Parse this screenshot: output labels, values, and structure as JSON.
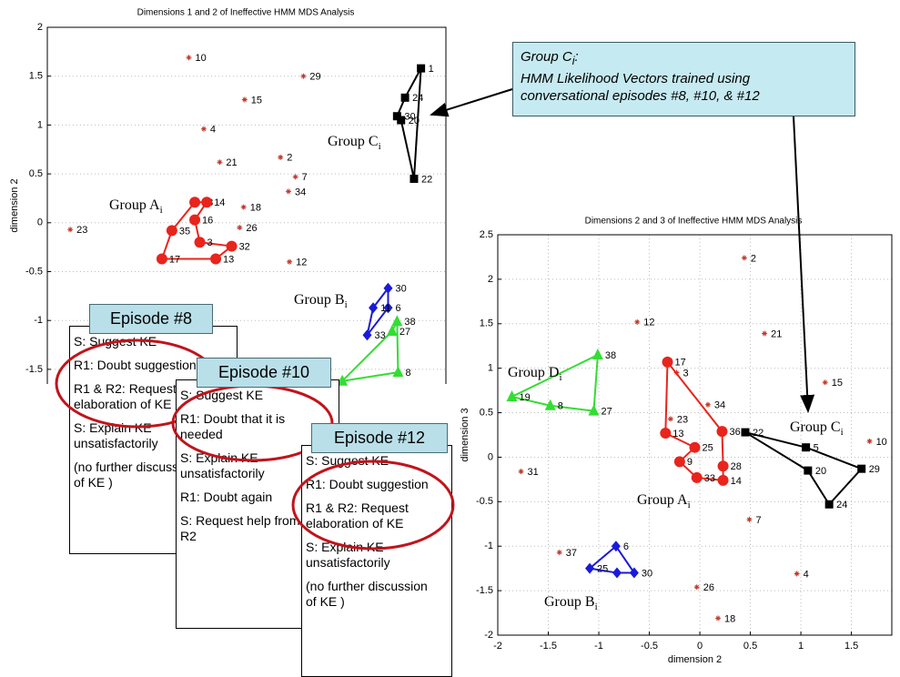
{
  "chart_data": [
    {
      "type": "scatter",
      "title": "Dimensions 1 and 2 of Ineffective HMM MDS Analysis",
      "ylabel": "dimension 2",
      "xlim": [
        -2,
        2
      ],
      "ylim": [
        -1.65,
        2
      ],
      "yticks": [
        -1.5,
        -1,
        -0.5,
        0,
        0.5,
        1,
        1.5,
        2
      ],
      "grid": true,
      "points": {
        "color": "#c0392b",
        "marker": "star",
        "x": [
          -0.58,
          0.57,
          -0.02,
          -0.43,
          -0.27,
          0.34,
          0.49,
          0.42,
          -0.03,
          -0.07,
          -1.77,
          0.43
        ],
        "y": [
          1.69,
          1.5,
          1.26,
          0.96,
          0.62,
          0.67,
          0.47,
          0.32,
          0.16,
          -0.05,
          -0.07,
          -0.4
        ],
        "labels": [
          "10",
          "29",
          "15",
          "4",
          "21",
          "2",
          "7",
          "34",
          "18",
          "26",
          "23",
          "12"
        ]
      },
      "series": [
        {
          "name": "Group A",
          "name_sub": "i",
          "color": "#e8241c",
          "marker": "circle",
          "x": [
            -0.85,
            -0.75,
            -0.52,
            -0.4,
            -0.52,
            -0.47,
            -0.15,
            -0.31
          ],
          "y": [
            -0.37,
            -0.08,
            0.21,
            0.21,
            0.03,
            -0.2,
            -0.24,
            -0.37
          ],
          "labels": [
            "17",
            "35",
            "28",
            "14",
            "16",
            "3",
            "32",
            "13"
          ]
        },
        {
          "name": "Group C",
          "name_sub": "i",
          "color": "#000000",
          "marker": "square",
          "x": [
            1.75,
            1.59,
            1.51,
            1.55,
            1.68
          ],
          "y": [
            1.58,
            1.28,
            1.09,
            1.05,
            0.45
          ],
          "labels": [
            "1",
            "24",
            "30",
            "20",
            "22"
          ]
        },
        {
          "name": "Group B",
          "name_sub": "i",
          "color": "#1a1adb",
          "marker": "diamond",
          "x": [
            1.42,
            1.42,
            1.21,
            1.27
          ],
          "y": [
            -0.67,
            -0.87,
            -1.15,
            -0.87
          ],
          "labels": [
            "30",
            "6",
            "33",
            "11"
          ]
        },
        {
          "name": null,
          "color": "#33dd33",
          "marker": "triangle",
          "x": [
            1.51,
            1.52,
            0.96,
            1.46
          ],
          "y": [
            -1.01,
            -1.53,
            -1.62,
            -1.11
          ],
          "labels": [
            "38",
            "8",
            null,
            "27"
          ]
        }
      ]
    },
    {
      "type": "scatter",
      "title": "Dimensions 2 and 3 of Ineffective HMM MDS Analysis",
      "xlabel": "dimension 2",
      "ylabel": "dimension 3",
      "xlim": [
        -2,
        1.9
      ],
      "ylim": [
        -2,
        2.5
      ],
      "xticks": [
        -2,
        -1.5,
        -1,
        -0.5,
        0,
        0.5,
        1,
        1.5
      ],
      "yticks": [
        -2,
        -1.5,
        -1,
        -0.5,
        0,
        0.5,
        1,
        1.5,
        2,
        2.5
      ],
      "grid": true,
      "points": {
        "color": "#c0392b",
        "marker": "star",
        "x": [
          0.44,
          -0.62,
          0.64,
          -0.23,
          1.24,
          0.08,
          -0.29,
          1.68,
          -1.77,
          0.49,
          -1.39,
          0.96,
          -0.03,
          0.18
        ],
        "y": [
          2.24,
          1.52,
          1.39,
          0.95,
          0.84,
          0.59,
          0.43,
          0.18,
          -0.16,
          -0.7,
          -1.07,
          -1.31,
          -1.46,
          -1.81
        ],
        "labels": [
          "2",
          "12",
          "21",
          "3",
          "15",
          "34",
          "23",
          "10",
          "31",
          "7",
          "37",
          "4",
          "26",
          "18"
        ]
      },
      "series": [
        {
          "name": "Group D",
          "name_sub": "i",
          "color": "#33dd33",
          "marker": "triangle",
          "x": [
            -1.86,
            -1.48,
            -1.05,
            -1.01
          ],
          "y": [
            0.68,
            0.58,
            0.52,
            1.15
          ],
          "labels": [
            "19",
            "8",
            "27",
            "38"
          ]
        },
        {
          "name": "Group C",
          "name_sub": "i",
          "color": "#000000",
          "marker": "square",
          "x": [
            0.45,
            1.05,
            1.6,
            1.28,
            1.07
          ],
          "y": [
            0.28,
            0.11,
            -0.13,
            -0.53,
            -0.15
          ],
          "labels": [
            "22",
            "5",
            "29",
            "24",
            "20"
          ]
        },
        {
          "name": "Group A",
          "name_sub": "i",
          "color": "#e8241c",
          "marker": "circle",
          "x": [
            -0.32,
            0.22,
            0.23,
            0.23,
            -0.03,
            -0.2,
            -0.05,
            -0.34
          ],
          "y": [
            1.07,
            0.29,
            -0.1,
            -0.26,
            -0.23,
            -0.05,
            0.11,
            0.27
          ],
          "labels": [
            "17",
            "36",
            "28",
            "14",
            "33",
            "9",
            "25",
            "13"
          ]
        },
        {
          "name": "Group B",
          "name_sub": "i",
          "color": "#1a1adb",
          "marker": "diamond",
          "x": [
            -0.83,
            -1.09,
            -0.82,
            -0.65
          ],
          "y": [
            -1.0,
            -1.25,
            -1.3,
            -1.3
          ],
          "labels": [
            "6",
            "25",
            null,
            "30"
          ]
        }
      ]
    }
  ],
  "callout": {
    "title": "Group C",
    "title_sub": "i",
    "title_end": ":",
    "lines": [
      "HMM Likelihood Vectors trained using",
      "conversational episodes #8, #10, & #12"
    ]
  },
  "episodes": [
    {
      "title": "Episode #8",
      "lines": [
        "S: Suggest KE",
        "R1: Doubt suggestion",
        "R1 & R2: Request elaboration of KE",
        "S: Explain KE unsatisfactorily",
        "(no further discussion of KE )"
      ]
    },
    {
      "title": "Episode #10",
      "lines": [
        "S: Suggest KE",
        "R1: Doubt that it is needed",
        "S: Explain KE unsatisfactorily",
        "R1: Doubt again",
        "S: Request help from R2"
      ]
    },
    {
      "title": "Episode #12",
      "lines": [
        "S: Suggest KE",
        "R1: Doubt suggestion",
        "R1 & R2: Request elaboration of KE",
        "S: Explain KE unsatisfactorily",
        "(no further discussion of KE )"
      ]
    }
  ]
}
